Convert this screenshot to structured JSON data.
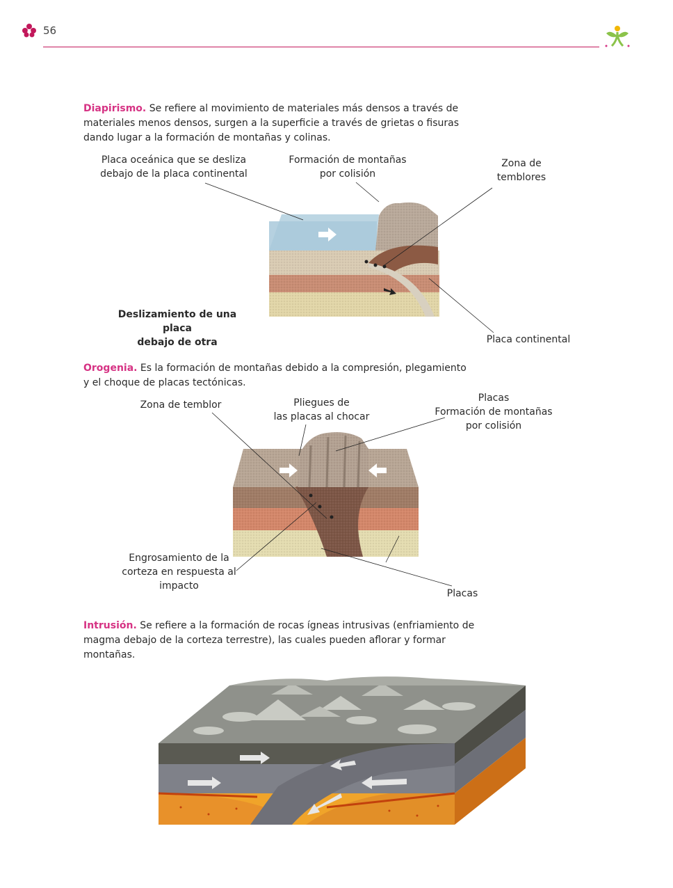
{
  "header": {
    "page_number": "56"
  },
  "sections": [
    {
      "term": "Diapirismo.",
      "text": " Se refiere al movimiento de materiales más densos a través de materiales menos densos, surgen a la superficie a través de grietas o fisuras dando lugar a la formación de montañas y colinas.",
      "labels": {
        "oceanic": [
          "Placa oceánica que se desliza",
          "debajo de la placa continental"
        ],
        "mountains": [
          "Formación de montañas",
          "por colisión"
        ],
        "quake_zone": [
          "Zona de",
          "temblores"
        ],
        "sliding": [
          "Deslizamiento de una placa",
          "debajo de otra"
        ],
        "continental": "Placa continental"
      }
    },
    {
      "term": "Orogenia.",
      "text": " Es la formación de montañas debido a la compresión, plegamiento y el choque de placas tectónicas.",
      "labels": {
        "quake_zone": "Zona de temblor",
        "folds": [
          "Pliegues de",
          "las placas al chocar"
        ],
        "plates_top": [
          "Placas",
          "Formación de montañas",
          "por colisión"
        ],
        "thickening": [
          "Engrosamiento de la",
          "corteza en respuesta al",
          "impacto"
        ],
        "plates_bottom": "Placas"
      }
    },
    {
      "term": "Intrusión.",
      "text": " Se refiere a la formación de rocas ígneas intrusivas (enfriamiento de magma debajo de la corteza terrestre), las cuales pueden aflorar y formar montañas."
    }
  ],
  "colors": {
    "accent": "#d63384",
    "rule": "#c2185b"
  }
}
